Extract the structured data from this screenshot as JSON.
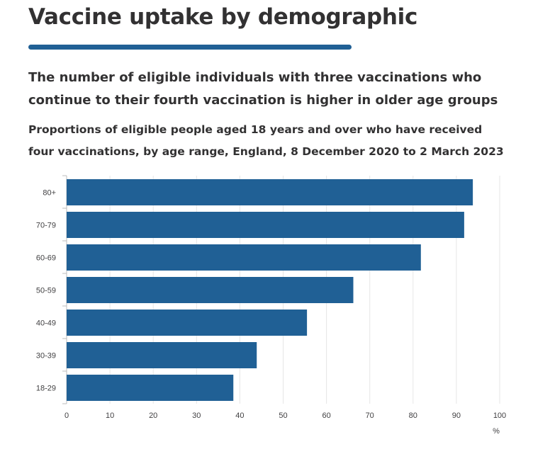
{
  "page": {
    "title": "Vaccine uptake by demographic",
    "headline": "The number of eligible individuals with three vaccinations who continue to their fourth vaccination is higher in older age groups"
  },
  "colors": {
    "bar": "#206095",
    "rule": "#206095",
    "gridline": "#e6e6e6",
    "text": "#323132"
  },
  "chart_data": {
    "type": "bar",
    "orientation": "horizontal",
    "title": "Proportions of eligible people aged 18 years and over who have received four vaccinations, by age range, England, 8 December 2020 to 2 March 2023",
    "xlabel": "%",
    "ylabel": "",
    "categories": [
      "80+",
      "70-79",
      "60-69",
      "50-59",
      "40-49",
      "30-39",
      "18-29"
    ],
    "values": [
      93.8,
      91.8,
      81.8,
      66.2,
      55.5,
      43.9,
      38.5
    ],
    "xlim": [
      0,
      100
    ],
    "xticks": [
      0,
      10,
      20,
      30,
      40,
      50,
      60,
      70,
      80,
      90,
      100
    ],
    "grid": true,
    "legend": "none"
  }
}
